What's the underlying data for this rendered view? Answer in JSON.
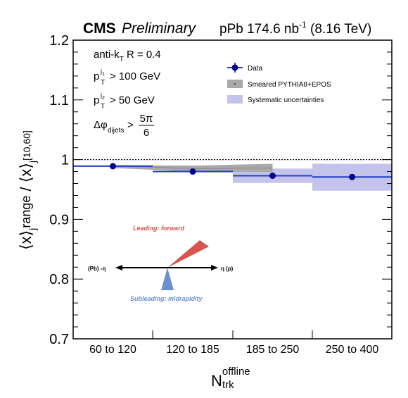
{
  "header": {
    "cms": "CMS",
    "preliminary": "Preliminary",
    "lumi_prefix": "pPb 174.6 nb",
    "lumi_exp": "-1",
    "lumi_suffix": " (8.16 TeV)"
  },
  "labels": {
    "jet_alg": "anti-k",
    "jet_alg_sub": "T",
    "jet_alg_rest": " R = 0.4",
    "pt1_cut": "> 100 GeV",
    "pt2_cut": "> 50 GeV",
    "dphi_sub": "dijets",
    "dphi_cut": ">",
    "dphi_num": "5π",
    "dphi_den": "6"
  },
  "legend": {
    "data": "Data",
    "mc": "Smeared PYTHIA8+EPOS",
    "syst": "Systematic uncertainties"
  },
  "diagram": {
    "leading": "Leading: forward",
    "subleading": "Subleading: midrapidity",
    "left_label": "(Pb) -η",
    "right_label": "η (p)"
  },
  "axes": {
    "xlabel_base": "N",
    "xlabel_sup": "offline",
    "xlabel_sub": "trk"
  },
  "colors": {
    "data": "#00008b",
    "line": "#1f3fbf",
    "syst": "#c3c3eb",
    "mc": "#a9a9a9",
    "leading": "#d9534f",
    "subleading": "#6d8fd0"
  },
  "chart_data": {
    "type": "scatter",
    "categories": [
      "60 to 120",
      "120 to 185",
      "185 to 250",
      "250 to 400"
    ],
    "ylim": [
      0.7,
      1.2
    ],
    "yticks": [
      0.7,
      0.8,
      0.9,
      1.0,
      1.1,
      1.2
    ],
    "ytick_labels": [
      "0.7",
      "0.8",
      "0.9",
      "1",
      "1.1",
      "1.2"
    ],
    "reference_line": 1.0,
    "series": [
      {
        "name": "Data",
        "values": [
          0.989,
          0.98,
          0.973,
          0.971
        ],
        "syst_low": [
          0.989,
          0.98,
          0.961,
          0.948
        ],
        "syst_high": [
          0.989,
          0.98,
          0.985,
          0.993
        ]
      },
      {
        "name": "Smeared PYTHIA8+EPOS",
        "values": [
          0.99,
          0.985,
          0.986,
          0.986
        ],
        "band_low": [
          0.986,
          0.98,
          0.979,
          0.979
        ],
        "band_high": [
          0.991,
          0.99,
          0.993,
          0.993
        ]
      }
    ]
  }
}
